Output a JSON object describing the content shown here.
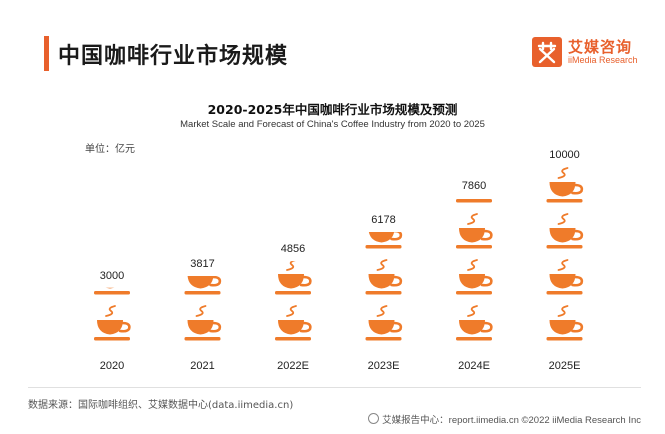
{
  "header": {
    "title": "中国咖啡行业市场规模",
    "logo_cn": "艾媒咨询",
    "logo_en": "iiMedia Research"
  },
  "colors": {
    "accent": "#e8602c",
    "cup": "#ef7b2a"
  },
  "chart_data": {
    "type": "bar",
    "style": "pictograph-cups",
    "title": "2020-2025年中国咖啡行业市场规模及预测",
    "subtitle": "Market Scale and Forecast of China's Coffee Industry from 2020 to 2025",
    "unit_label": "单位：亿元",
    "categories": [
      "2020",
      "2021",
      "2022E",
      "2023E",
      "2024E",
      "2025E"
    ],
    "values": [
      3000,
      3817,
      4856,
      6178,
      7860,
      10000
    ],
    "value_labels": [
      "3000",
      "3817",
      "4856",
      "6178",
      "7860",
      "10000"
    ],
    "units_per_cup": 2500,
    "grid": false,
    "legend": "none"
  },
  "footer": {
    "source": "数据来源：国际咖啡组织、艾媒数据中心(data.iimedia.cn)",
    "right": "艾媒报告中心：report.iimedia.cn  ©2022  iiMedia Research  Inc"
  }
}
